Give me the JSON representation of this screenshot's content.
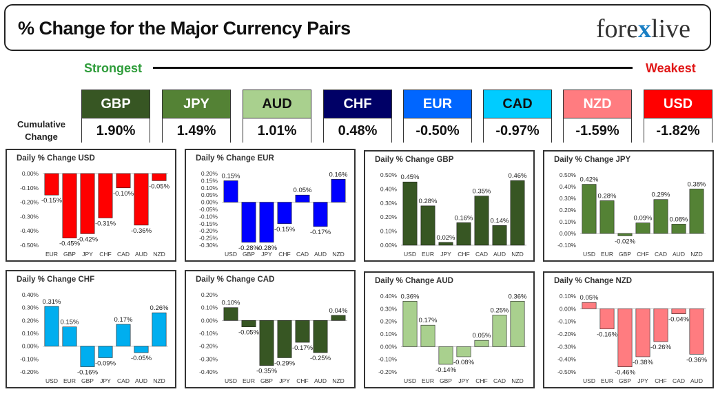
{
  "header": {
    "title": "% Change for the Major Currency Pairs",
    "logo_left": "fore",
    "logo_x": "x",
    "logo_right": "live"
  },
  "strength": {
    "strongest_label": "Strongest",
    "weakest_label": "Weakest",
    "cumulative_label_line1": "Cumulative",
    "cumulative_label_line2": "Change"
  },
  "currencies": [
    {
      "name": "GBP",
      "value": "1.90%",
      "bg": "#375623",
      "fg": "#ffffff"
    },
    {
      "name": "JPY",
      "value": "1.49%",
      "bg": "#548235",
      "fg": "#ffffff"
    },
    {
      "name": "AUD",
      "value": "1.01%",
      "bg": "#a9d08e",
      "fg": "#111111"
    },
    {
      "name": "CHF",
      "value": "0.48%",
      "bg": "#000066",
      "fg": "#ffffff"
    },
    {
      "name": "EUR",
      "value": "-0.50%",
      "bg": "#0066ff",
      "fg": "#ffffff"
    },
    {
      "name": "CAD",
      "value": "-0.97%",
      "bg": "#00ccff",
      "fg": "#111111"
    },
    {
      "name": "NZD",
      "value": "-1.59%",
      "bg": "#ff7c80",
      "fg": "#ffffff"
    },
    {
      "name": "USD",
      "value": "-1.82%",
      "bg": "#ff0000",
      "fg": "#ffffff"
    }
  ],
  "chart_data": [
    {
      "type": "bar",
      "title": "Daily % Change USD",
      "color": "#ff0000",
      "categories": [
        "EUR",
        "GBP",
        "JPY",
        "CHF",
        "CAD",
        "AUD",
        "NZD"
      ],
      "values": [
        -0.15,
        -0.45,
        -0.42,
        -0.31,
        -0.1,
        -0.36,
        -0.05
      ],
      "labels": [
        "-0.15%",
        "-0.45%",
        "-0.42%",
        "-0.31%",
        "-0.10%",
        "-0.36%",
        "-0.05%"
      ],
      "ylim": [
        -0.5,
        0.0
      ],
      "yticks": [
        "0.00%",
        "-0.10%",
        "-0.20%",
        "-0.30%",
        "-0.40%",
        "-0.50%"
      ]
    },
    {
      "type": "bar",
      "title": "Daily % Change EUR",
      "color": "#0000ff",
      "categories": [
        "USD",
        "GBP",
        "JPY",
        "CHF",
        "CAD",
        "AUD",
        "NZD"
      ],
      "values": [
        0.15,
        -0.28,
        -0.28,
        -0.15,
        0.05,
        -0.17,
        0.16
      ],
      "labels": [
        "0.15%",
        "-0.28%",
        "-0.28%",
        "-0.15%",
        "0.05%",
        "-0.17%",
        "0.16%"
      ],
      "ylim": [
        -0.3,
        0.2
      ],
      "yticks": [
        "0.20%",
        "0.15%",
        "0.10%",
        "0.05%",
        "0.00%",
        "-0.05%",
        "-0.10%",
        "-0.15%",
        "-0.20%",
        "-0.25%",
        "-0.30%"
      ]
    },
    {
      "type": "bar",
      "title": "Daily % Change GBP",
      "color": "#375623",
      "categories": [
        "USD",
        "EUR",
        "JPY",
        "CHF",
        "CAD",
        "AUD",
        "NZD"
      ],
      "values": [
        0.45,
        0.28,
        0.02,
        0.16,
        0.35,
        0.14,
        0.46
      ],
      "labels": [
        "0.45%",
        "0.28%",
        "0.02%",
        "0.16%",
        "0.35%",
        "0.14%",
        "0.46%"
      ],
      "ylim": [
        0.0,
        0.5
      ],
      "yticks": [
        "0.50%",
        "0.40%",
        "0.30%",
        "0.20%",
        "0.10%",
        "0.00%"
      ]
    },
    {
      "type": "bar",
      "title": "Daily % Change JPY",
      "color": "#548235",
      "categories": [
        "USD",
        "EUR",
        "GBP",
        "CHF",
        "CAD",
        "AUD",
        "NZD"
      ],
      "values": [
        0.42,
        0.28,
        -0.02,
        0.09,
        0.29,
        0.08,
        0.38
      ],
      "labels": [
        "0.42%",
        "0.28%",
        "-0.02%",
        "0.09%",
        "0.29%",
        "0.08%",
        "0.38%"
      ],
      "ylim": [
        -0.1,
        0.5
      ],
      "yticks": [
        "0.50%",
        "0.40%",
        "0.30%",
        "0.20%",
        "0.10%",
        "0.00%",
        "-0.10%"
      ]
    },
    {
      "type": "bar",
      "title": "Daily % Change CHF",
      "color": "#00aeef",
      "categories": [
        "USD",
        "EUR",
        "GBP",
        "JPY",
        "CAD",
        "AUD",
        "NZD"
      ],
      "values": [
        0.31,
        0.15,
        -0.16,
        -0.09,
        0.17,
        -0.05,
        0.26
      ],
      "labels": [
        "0.31%",
        "0.15%",
        "-0.16%",
        "-0.09%",
        "0.17%",
        "-0.05%",
        "0.26%"
      ],
      "ylim": [
        -0.2,
        0.4
      ],
      "yticks": [
        "0.40%",
        "0.30%",
        "0.20%",
        "0.10%",
        "0.00%",
        "-0.10%",
        "-0.20%"
      ]
    },
    {
      "type": "bar",
      "title": "Daily % Change CAD",
      "color": "#375623",
      "categories": [
        "USD",
        "EUR",
        "GBP",
        "JPY",
        "CHF",
        "AUD",
        "NZD"
      ],
      "values": [
        0.1,
        -0.05,
        -0.35,
        -0.29,
        -0.17,
        -0.25,
        0.04
      ],
      "labels": [
        "0.10%",
        "-0.05%",
        "-0.35%",
        "-0.29%",
        "-0.17%",
        "-0.25%",
        "0.04%"
      ],
      "ylim": [
        -0.4,
        0.2
      ],
      "yticks": [
        "0.20%",
        "0.10%",
        "0.00%",
        "-0.10%",
        "-0.20%",
        "-0.30%",
        "-0.40%"
      ]
    },
    {
      "type": "bar",
      "title": "Daily % Change AUD",
      "color": "#a9d08e",
      "categories": [
        "USD",
        "EUR",
        "GBP",
        "JPY",
        "CHF",
        "CAD",
        "NZD"
      ],
      "values": [
        0.36,
        0.17,
        -0.14,
        -0.08,
        0.05,
        0.25,
        0.36
      ],
      "labels": [
        "0.36%",
        "0.17%",
        "-0.14%",
        "-0.08%",
        "0.05%",
        "0.25%",
        "0.36%"
      ],
      "ylim": [
        -0.2,
        0.4
      ],
      "yticks": [
        "0.40%",
        "0.30%",
        "0.20%",
        "0.10%",
        "0.00%",
        "-0.10%",
        "-0.20%"
      ]
    },
    {
      "type": "bar",
      "title": "Daily % Change NZD",
      "color": "#ff7c80",
      "categories": [
        "USD",
        "EUR",
        "GBP",
        "JPY",
        "CHF",
        "CAD",
        "AUD"
      ],
      "values": [
        0.05,
        -0.16,
        -0.46,
        -0.38,
        -0.26,
        -0.04,
        -0.36
      ],
      "labels": [
        "0.05%",
        "-0.16%",
        "-0.46%",
        "-0.38%",
        "-0.26%",
        "-0.04%",
        "-0.36%"
      ],
      "ylim": [
        -0.5,
        0.1
      ],
      "yticks": [
        "0.10%",
        "0.00%",
        "-0.10%",
        "-0.20%",
        "-0.30%",
        "-0.40%",
        "-0.50%"
      ]
    }
  ]
}
